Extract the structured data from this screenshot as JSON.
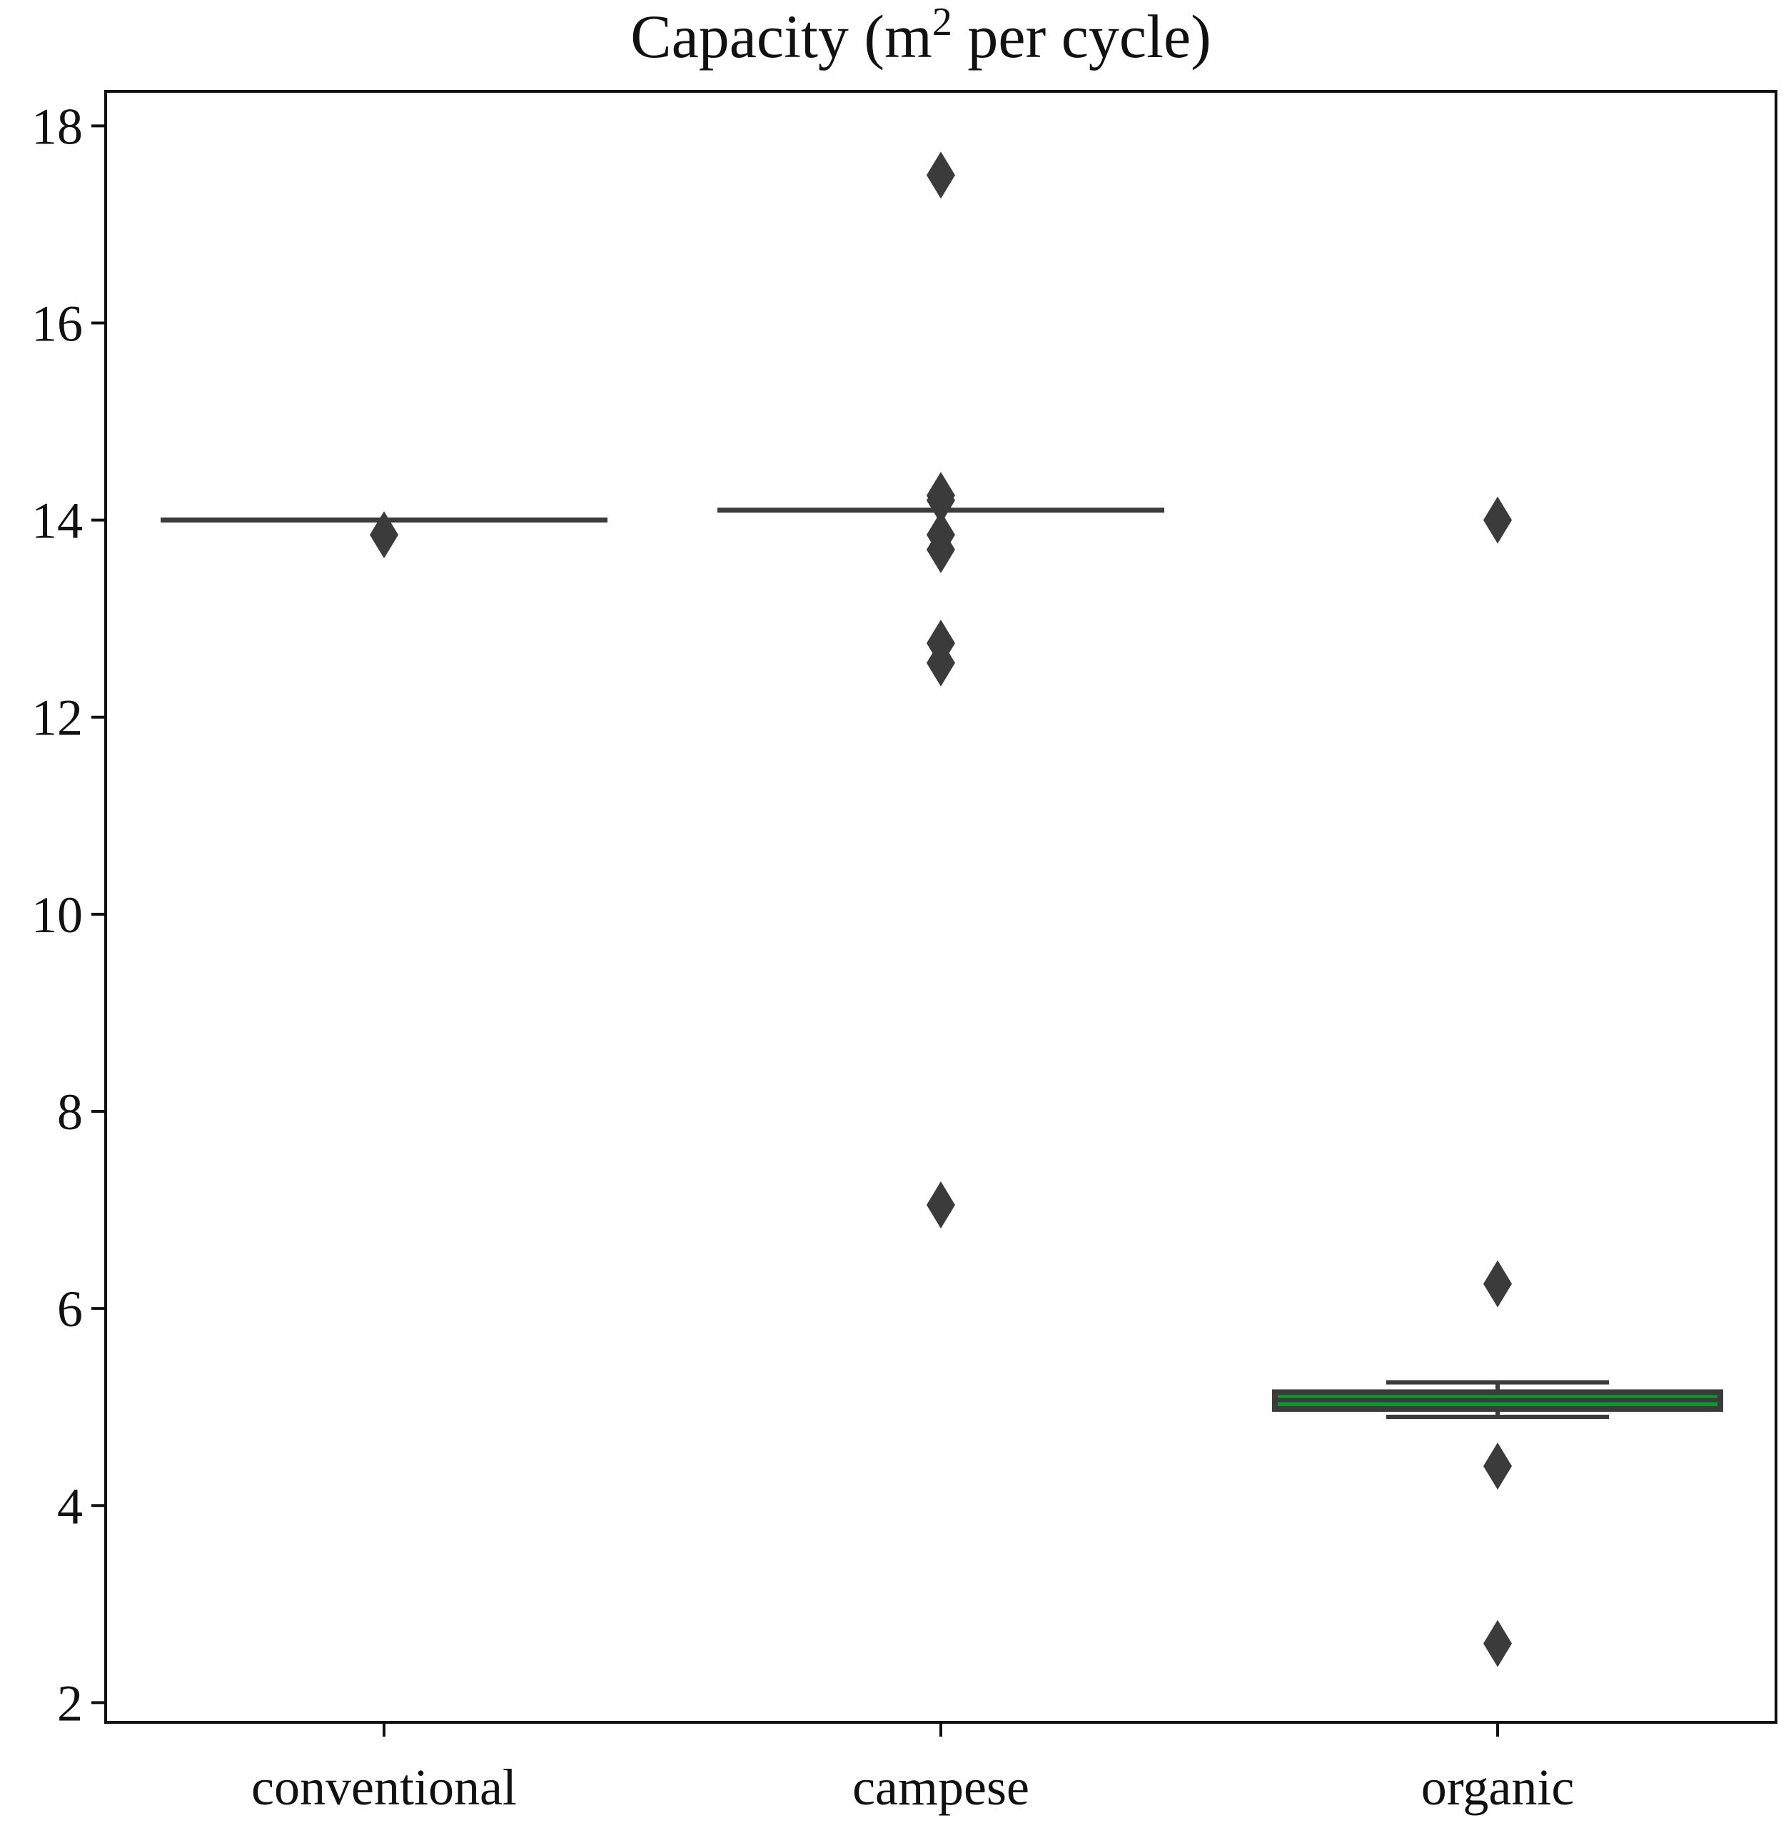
{
  "chart_data": {
    "type": "box",
    "title": "Capacity (m² per cycle)",
    "title_parts": {
      "before_sup": "Capacity (m",
      "sup": "2",
      "after_sup": " per  cycle)"
    },
    "xlabel": "",
    "ylabel": "",
    "ylim": [
      1.8,
      18.35
    ],
    "yticks": [
      2,
      4,
      6,
      8,
      10,
      12,
      14,
      16,
      18
    ],
    "categories": [
      "conventional",
      "campese",
      "organic"
    ],
    "boxes": [
      {
        "category": "conventional",
        "q1": 14.0,
        "median": 14.0,
        "q3": 14.0,
        "whisker_low": 14.0,
        "whisker_high": 14.0,
        "fill": "#3b3b3b",
        "outliers": [
          13.85
        ]
      },
      {
        "category": "campese",
        "q1": 14.1,
        "median": 14.1,
        "q3": 14.1,
        "whisker_low": 14.1,
        "whisker_high": 14.1,
        "fill": "#3b3b3b",
        "outliers": [
          17.5,
          14.25,
          14.2,
          13.85,
          13.7,
          12.75,
          12.55,
          7.05
        ]
      },
      {
        "category": "organic",
        "q1": 4.98,
        "median": 5.07,
        "q3": 5.15,
        "whisker_low": 4.9,
        "whisker_high": 5.25,
        "fill": "#0a9a2c",
        "outliers": [
          14.0,
          6.25,
          4.4,
          2.6
        ]
      }
    ],
    "colors": {
      "line": "#3b3b3b",
      "axis": "#111111",
      "box_fill": "#0a9a2c"
    },
    "grid": false
  }
}
